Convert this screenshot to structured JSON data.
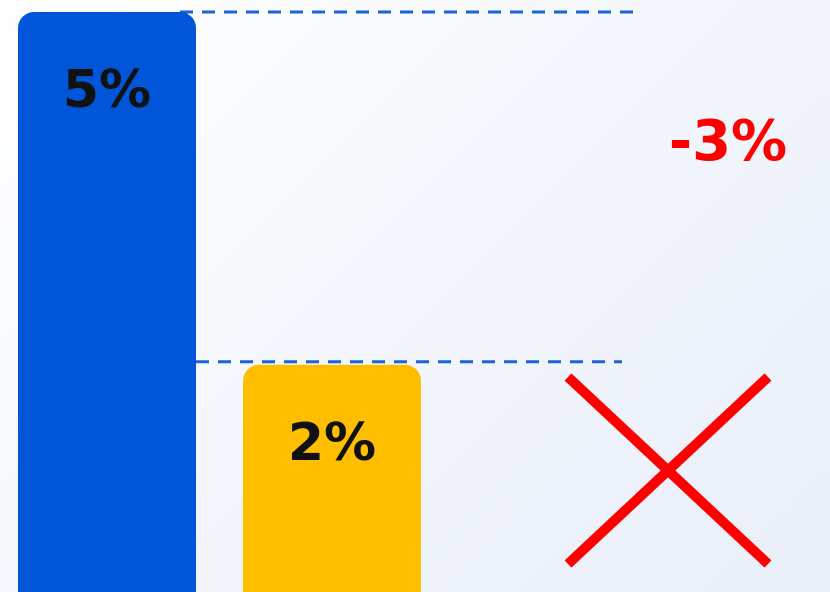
{
  "chart_data": {
    "type": "bar",
    "categories": [
      "",
      ""
    ],
    "values": [
      5,
      2
    ],
    "value_labels": [
      "5%",
      "2%"
    ],
    "bar_colors": [
      "#0055d9",
      "#ffbf00"
    ],
    "difference_label": "-3%",
    "difference_color": "#ff0000",
    "reference_line_color": "#1a63d8",
    "annotation_icon": "cross-icon",
    "title": "",
    "xlabel": "",
    "ylabel": "",
    "ylim": [
      0,
      5
    ],
    "grid": false,
    "legend": "none"
  }
}
